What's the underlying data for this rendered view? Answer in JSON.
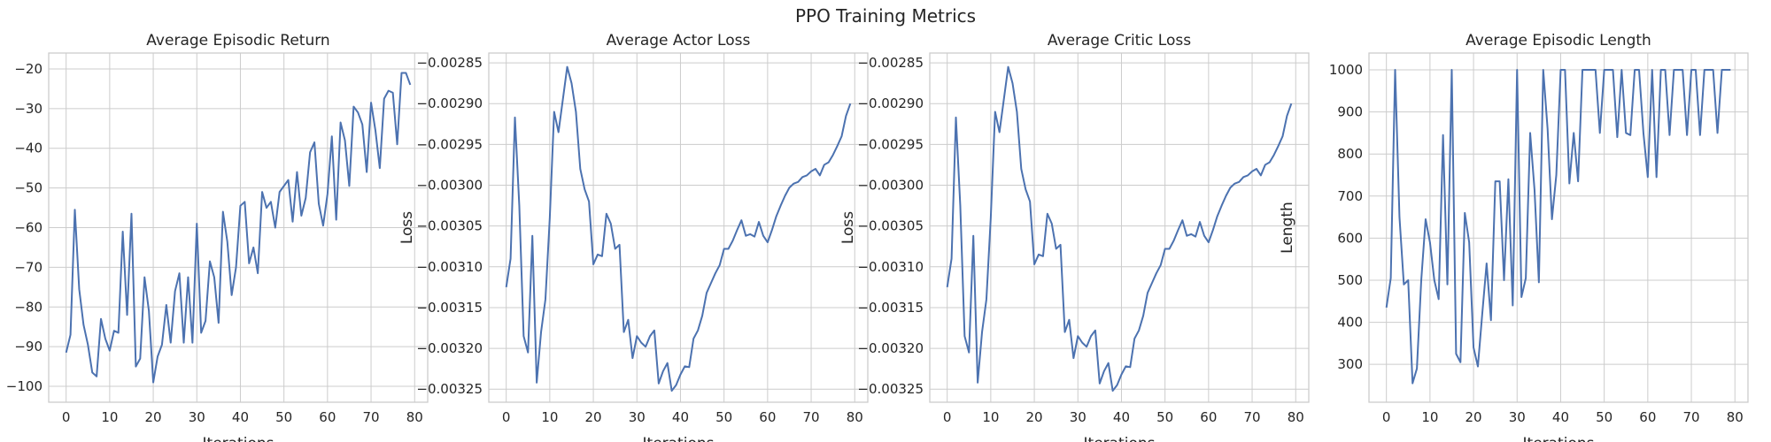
{
  "suptitle": "PPO Training Metrics",
  "colors": {
    "line": "#4c72b0",
    "grid": "#cccccc",
    "text": "#262626",
    "background": "#ffffff"
  },
  "chart_data": [
    {
      "type": "line",
      "title": "Average Episodic Return",
      "xlabel": "Iterations",
      "ylabel": "",
      "xlim": [
        -4,
        83
      ],
      "ylim": [
        -104,
        -16
      ],
      "xticks": [
        0,
        10,
        20,
        30,
        40,
        50,
        60,
        70,
        80
      ],
      "yticks": [
        -100,
        -90,
        -80,
        -70,
        -60,
        -50,
        -40,
        -30,
        -20
      ],
      "ytick_labels": [
        "−100",
        "−90",
        "−80",
        "−70",
        "−60",
        "−50",
        "−40",
        "−30",
        "−20"
      ],
      "grid": true,
      "y": [
        -91.5,
        -87,
        -55.5,
        -75.5,
        -84.5,
        -89.5,
        -96.5,
        -97.5,
        -83,
        -88,
        -91,
        -86,
        -86.5,
        -61,
        -82,
        -56.5,
        -95,
        -93,
        -72.5,
        -81,
        -99,
        -92.5,
        -89.5,
        -79.5,
        -89,
        -76,
        -71.5,
        -89,
        -72.5,
        -89,
        -59,
        -86.5,
        -83.5,
        -68.5,
        -72.5,
        -84,
        -56,
        -63.5,
        -77,
        -70,
        -54.5,
        -53.5,
        -69,
        -65,
        -71.5,
        -51,
        -55,
        -53.5,
        -60,
        -51,
        -49.5,
        -48,
        -58.5,
        -46,
        -57,
        -52.5,
        -41,
        -38.5,
        -54,
        -59.5,
        -51.5,
        -37,
        -58,
        -33.5,
        -38,
        -49.5,
        -29.5,
        -31,
        -34,
        -46,
        -28.5,
        -35.5,
        -45,
        -27.5,
        -25.5,
        -26,
        -39,
        -21,
        -21,
        -24
      ]
    },
    {
      "type": "line",
      "title": "Average Actor Loss",
      "xlabel": "Iterations",
      "ylabel": "Loss",
      "xlim": [
        -4,
        83
      ],
      "ylim": [
        -0.003266,
        -0.002838
      ],
      "xticks": [
        0,
        10,
        20,
        30,
        40,
        50,
        60,
        70,
        80
      ],
      "yticks": [
        -0.00325,
        -0.0032,
        -0.00315,
        -0.0031,
        -0.00305,
        -0.003,
        -0.00295,
        -0.0029,
        -0.00285
      ],
      "ytick_labels": [
        "−0.00325",
        "−0.00320",
        "−0.00315",
        "−0.00310",
        "−0.00305",
        "−0.00300",
        "−0.00295",
        "−0.00290",
        "−0.00285"
      ],
      "grid": true,
      "y": [
        -0.003125,
        -0.00309,
        -0.002917,
        -0.003025,
        -0.003185,
        -0.003205,
        -0.003062,
        -0.003242,
        -0.00318,
        -0.00314,
        -0.00304,
        -0.00291,
        -0.002935,
        -0.002895,
        -0.002855,
        -0.002875,
        -0.00291,
        -0.00298,
        -0.003005,
        -0.00302,
        -0.003097,
        -0.003085,
        -0.003087,
        -0.003035,
        -0.003047,
        -0.003078,
        -0.003073,
        -0.00318,
        -0.003165,
        -0.003212,
        -0.003185,
        -0.003193,
        -0.003198,
        -0.003185,
        -0.003178,
        -0.003243,
        -0.003228,
        -0.003218,
        -0.003252,
        -0.003245,
        -0.003232,
        -0.003222,
        -0.003223,
        -0.003188,
        -0.003178,
        -0.00316,
        -0.003132,
        -0.00312,
        -0.003108,
        -0.003098,
        -0.003078,
        -0.003078,
        -0.003068,
        -0.003055,
        -0.003043,
        -0.003062,
        -0.00306,
        -0.003063,
        -0.003045,
        -0.003062,
        -0.00307,
        -0.003055,
        -0.003038,
        -0.003025,
        -0.003013,
        -0.003003,
        -0.002998,
        -0.002996,
        -0.00299,
        -0.002988,
        -0.002983,
        -0.00298,
        -0.002988,
        -0.002975,
        -0.002972,
        -0.002963,
        -0.002952,
        -0.00294,
        -0.002915,
        -0.0029
      ]
    },
    {
      "type": "line",
      "title": "Average Critic Loss",
      "xlabel": "Iterations",
      "ylabel": "Loss",
      "xlim": [
        -4,
        83
      ],
      "ylim": [
        -0.003266,
        -0.002838
      ],
      "xticks": [
        0,
        10,
        20,
        30,
        40,
        50,
        60,
        70,
        80
      ],
      "yticks": [
        -0.00325,
        -0.0032,
        -0.00315,
        -0.0031,
        -0.00305,
        -0.003,
        -0.00295,
        -0.0029,
        -0.00285
      ],
      "ytick_labels": [
        "−0.00325",
        "−0.00320",
        "−0.00315",
        "−0.00310",
        "−0.00305",
        "−0.00300",
        "−0.00295",
        "−0.00290",
        "−0.00285"
      ],
      "grid": true,
      "y": [
        -0.003125,
        -0.00309,
        -0.002917,
        -0.003025,
        -0.003185,
        -0.003205,
        -0.003062,
        -0.003242,
        -0.00318,
        -0.00314,
        -0.00304,
        -0.00291,
        -0.002935,
        -0.002895,
        -0.002855,
        -0.002875,
        -0.00291,
        -0.00298,
        -0.003005,
        -0.00302,
        -0.003097,
        -0.003085,
        -0.003087,
        -0.003035,
        -0.003047,
        -0.003078,
        -0.003073,
        -0.00318,
        -0.003165,
        -0.003212,
        -0.003185,
        -0.003193,
        -0.003198,
        -0.003185,
        -0.003178,
        -0.003243,
        -0.003228,
        -0.003218,
        -0.003252,
        -0.003245,
        -0.003232,
        -0.003222,
        -0.003223,
        -0.003188,
        -0.003178,
        -0.00316,
        -0.003132,
        -0.00312,
        -0.003108,
        -0.003098,
        -0.003078,
        -0.003078,
        -0.003068,
        -0.003055,
        -0.003043,
        -0.003062,
        -0.00306,
        -0.003063,
        -0.003045,
        -0.003062,
        -0.00307,
        -0.003055,
        -0.003038,
        -0.003025,
        -0.003013,
        -0.003003,
        -0.002998,
        -0.002996,
        -0.00299,
        -0.002988,
        -0.002983,
        -0.00298,
        -0.002988,
        -0.002975,
        -0.002972,
        -0.002963,
        -0.002952,
        -0.00294,
        -0.002915,
        -0.0029
      ]
    },
    {
      "type": "line",
      "title": "Average Episodic Length",
      "xlabel": "Iterations",
      "ylabel": "Length",
      "xlim": [
        -4,
        83
      ],
      "ylim": [
        210,
        1040
      ],
      "xticks": [
        0,
        10,
        20,
        30,
        40,
        50,
        60,
        70,
        80
      ],
      "yticks": [
        300,
        400,
        500,
        600,
        700,
        800,
        900,
        1000
      ],
      "ytick_labels": [
        "300",
        "400",
        "500",
        "600",
        "700",
        "800",
        "900",
        "1000"
      ],
      "grid": true,
      "y": [
        435,
        505,
        1000,
        650,
        490,
        500,
        255,
        290,
        500,
        645,
        590,
        500,
        455,
        845,
        490,
        1000,
        325,
        305,
        660,
        590,
        340,
        295,
        420,
        540,
        405,
        735,
        735,
        500,
        740,
        440,
        1000,
        460,
        505,
        850,
        715,
        495,
        1000,
        860,
        645,
        750,
        1000,
        1000,
        730,
        850,
        735,
        1000,
        1000,
        1000,
        1000,
        850,
        1000,
        1000,
        1000,
        840,
        1000,
        850,
        845,
        1000,
        1000,
        850,
        745,
        1000,
        745,
        1000,
        1000,
        845,
        1000,
        1000,
        1000,
        845,
        1000,
        1000,
        845,
        1000,
        1000,
        1000,
        850,
        1000,
        1000,
        1000
      ]
    }
  ]
}
